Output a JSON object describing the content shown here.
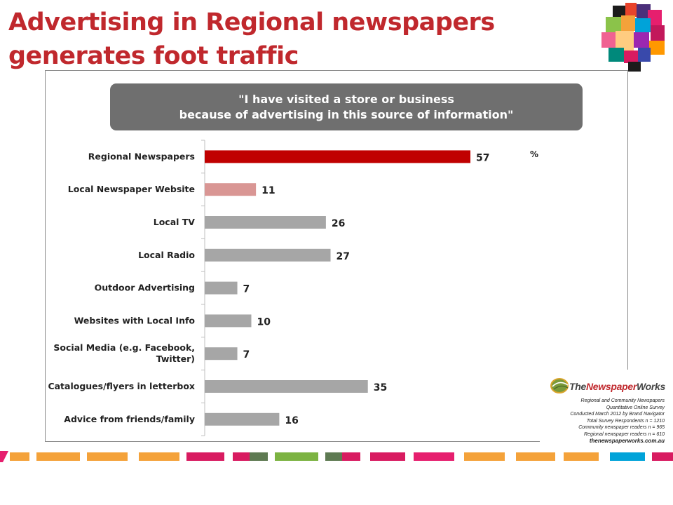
{
  "page": {
    "title": "Advertising in Regional newspapers generates foot traffic"
  },
  "banner": {
    "line1": "\"I have visited a store or business",
    "line2": "because of advertising in this source of information\""
  },
  "chart_data": {
    "type": "bar",
    "orientation": "horizontal",
    "unit_label": "%",
    "categories": [
      "Regional Newspapers",
      "Local Newspaper Website",
      "Local TV",
      "Local Radio",
      "Outdoor Advertising",
      "Websites with Local Info",
      "Social Media (e.g. Facebook, Twitter)",
      "Catalogues/flyers in letterbox",
      "Advice from friends/family"
    ],
    "values": [
      57,
      11,
      26,
      27,
      7,
      10,
      7,
      35,
      16
    ],
    "colors": [
      "#c00000",
      "#d99694",
      "#a6a6a6",
      "#a6a6a6",
      "#a6a6a6",
      "#a6a6a6",
      "#a6a6a6",
      "#a6a6a6",
      "#a6a6a6"
    ],
    "xlim": [
      0,
      100
    ],
    "grid": false,
    "legend": "none"
  },
  "source": {
    "brand_part1": "The",
    "brand_part2": "Newspaper",
    "brand_part3": "Works",
    "notes": [
      "Regional and Community Newspapers",
      "Quantitative Online Survey",
      "Conducted March 2012 by Brand Navigator",
      "Total Survey Respondents n = 1210",
      "Community newspaper readers n = 965",
      "Regional newspaper readers n = 610"
    ],
    "website": "thenewspaperworks.com.au"
  },
  "colors": {
    "title": "#c0282d",
    "banner": "#6f6f6f",
    "highlight_bar": "#c00000",
    "secondary_bar": "#d99694",
    "default_bar": "#a6a6a6"
  }
}
